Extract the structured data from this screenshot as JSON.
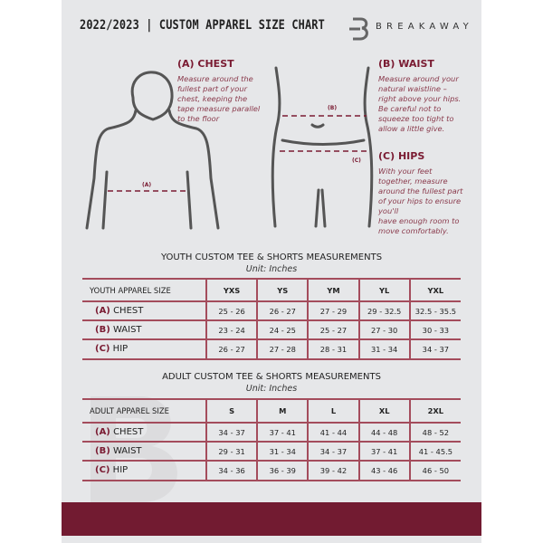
{
  "header": {
    "title": "2022/2023 | CUSTOM APPAREL SIZE CHART",
    "brand": "BREAKAWAY",
    "logo_letter": "B"
  },
  "guide": {
    "chest": {
      "heading": "(A) CHEST",
      "text": [
        "Measure around the",
        "fullest part of your",
        "chest, keeping the",
        "tape measure parallel",
        "to the floor"
      ],
      "marker": "(A)"
    },
    "waist": {
      "heading": "(B) WAIST",
      "text": [
        "Measure around your",
        "natural waistline –",
        "right above your hips.",
        "Be careful not to",
        "squeeze too tight to",
        "allow a little give."
      ],
      "marker": "(B)"
    },
    "hips": {
      "heading": "(C) HIPS",
      "text": [
        "With your feet",
        "together, measure",
        "around the fullest part",
        "of your hips to ensure",
        "you'll",
        "have enough room to",
        "move comfortably."
      ],
      "marker": "(C)"
    }
  },
  "youth": {
    "title": "YOUTH CUSTOM TEE & SHORTS MEASUREMENTS",
    "unit": "Unit: Inches",
    "header": [
      "YOUTH APPAREL SIZE",
      "YXS",
      "YS",
      "YM",
      "YL",
      "YXL"
    ],
    "rows": [
      {
        "code": "(A)",
        "name": "CHEST",
        "values": [
          "25 - 26",
          "26 - 27",
          "27 - 29",
          "29 - 32.5",
          "32.5 - 35.5"
        ]
      },
      {
        "code": "(B)",
        "name": "WAIST",
        "values": [
          "23 - 24",
          "24 - 25",
          "25 - 27",
          "27 - 30",
          "30 - 33"
        ]
      },
      {
        "code": "(C)",
        "name": "HIP",
        "values": [
          "26 - 27",
          "27 - 28",
          "28 - 31",
          "31 - 34",
          "34 - 37"
        ]
      }
    ]
  },
  "adult": {
    "title": "ADULT CUSTOM TEE & SHORTS MEASUREMENTS",
    "unit": "Unit: Inches",
    "header": [
      "ADULT APPAREL SIZE",
      "S",
      "M",
      "L",
      "XL",
      "2XL"
    ],
    "rows": [
      {
        "code": "(A)",
        "name": "CHEST",
        "values": [
          "34 - 37",
          "37 - 41",
          "41 - 44",
          "44 - 48",
          "48 - 52"
        ]
      },
      {
        "code": "(B)",
        "name": "WAIST",
        "values": [
          "29 - 31",
          "31 - 34",
          "34 - 37",
          "37 - 41",
          "41 - 45.5"
        ]
      },
      {
        "code": "(C)",
        "name": "HIP",
        "values": [
          "34 - 36",
          "36 - 39",
          "39 - 42",
          "43 - 46",
          "46 - 50"
        ]
      }
    ]
  },
  "colors": {
    "accent": "#721b31",
    "panel": "#e6e7e9"
  }
}
